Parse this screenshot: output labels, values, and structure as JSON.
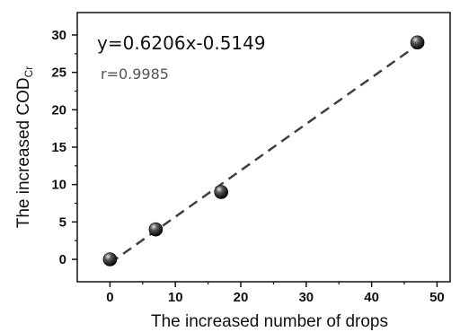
{
  "chart_data": {
    "type": "scatter",
    "xlabel": "The increased number of drops",
    "ylabel_main": "The increased COD",
    "ylabel_sub": "Cr",
    "xlim": [
      -5,
      52
    ],
    "ylim": [
      -3,
      33
    ],
    "xticks": [
      0,
      10,
      20,
      30,
      40,
      50
    ],
    "yticks": [
      0,
      5,
      10,
      15,
      20,
      25,
      30
    ],
    "points": [
      {
        "x": 0,
        "y": 0
      },
      {
        "x": 7,
        "y": 4
      },
      {
        "x": 17,
        "y": 9
      },
      {
        "x": 47,
        "y": 29
      }
    ],
    "fit": {
      "slope": 0.6206,
      "intercept": -0.5149,
      "x_range": [
        0,
        47
      ],
      "style": "dashed"
    },
    "annotations": {
      "equation": "y=0.6206x-0.5149",
      "r_value": "r=0.9985"
    },
    "grid": false
  }
}
